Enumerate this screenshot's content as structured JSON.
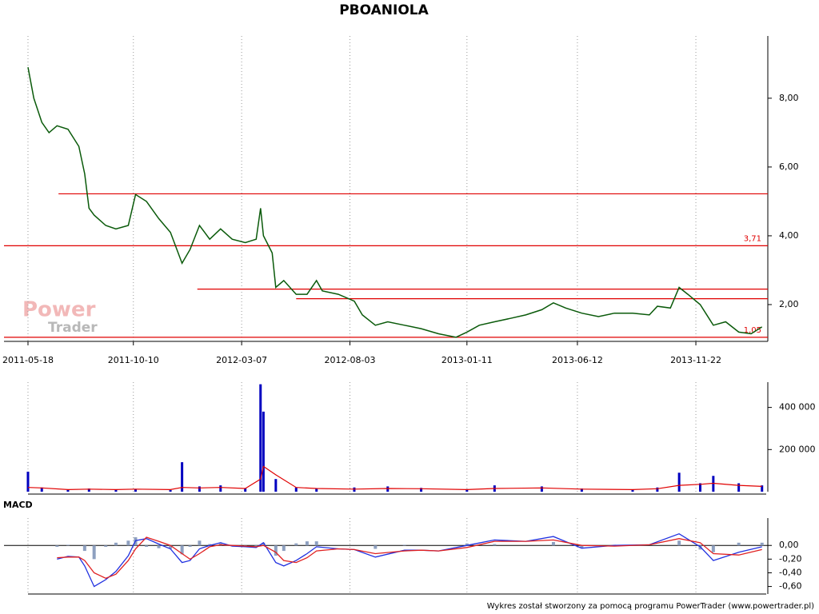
{
  "chart_data": [
    {
      "type": "line",
      "title": "PBOANIOLA",
      "color": "#0a5a0a",
      "xlim": [
        "2011-04-15",
        "2014-03-01"
      ],
      "ylim": [
        0.93,
        9.81
      ],
      "xticks": [
        "2011-05-18",
        "2011-10-10",
        "2012-03-07",
        "2012-08-03",
        "2013-01-11",
        "2013-06-12",
        "2013-11-22"
      ],
      "yticks": [
        {
          "value": 2,
          "label": "2,00"
        },
        {
          "value": 4,
          "label": "4,00"
        },
        {
          "value": 6,
          "label": "6,00"
        },
        {
          "value": 8,
          "label": "8,00"
        }
      ],
      "grid": true,
      "x": [
        "2011-05-18",
        "2011-05-26",
        "2011-06-06",
        "2011-06-16",
        "2011-06-27",
        "2011-07-12",
        "2011-07-27",
        "2011-08-04",
        "2011-08-10",
        "2011-08-17",
        "2011-09-02",
        "2011-09-16",
        "2011-10-03",
        "2011-10-13",
        "2011-10-28",
        "2011-11-14",
        "2011-11-30",
        "2011-12-16",
        "2011-12-27",
        "2012-01-09",
        "2012-01-23",
        "2012-02-07",
        "2012-02-23",
        "2012-03-12",
        "2012-03-27",
        "2012-04-02",
        "2012-04-06",
        "2012-04-18",
        "2012-04-23",
        "2012-05-04",
        "2012-05-21",
        "2012-06-05",
        "2012-06-18",
        "2012-06-26",
        "2012-07-18",
        "2012-08-09",
        "2012-08-20",
        "2012-09-07",
        "2012-09-24",
        "2012-10-17",
        "2012-11-09",
        "2012-12-03",
        "2012-12-27",
        "2013-01-11",
        "2013-01-28",
        "2013-02-18",
        "2013-03-12",
        "2013-04-02",
        "2013-04-24",
        "2013-05-10",
        "2013-05-27",
        "2013-06-18",
        "2013-07-11",
        "2013-08-02",
        "2013-08-27",
        "2013-09-19",
        "2013-09-30",
        "2013-10-18",
        "2013-10-30",
        "2013-11-11",
        "2013-11-28",
        "2013-12-16",
        "2014-01-02",
        "2014-01-20",
        "2014-02-06",
        "2014-02-21"
      ],
      "values": [
        8.9,
        8.0,
        7.3,
        7.0,
        7.2,
        7.1,
        6.6,
        5.8,
        4.8,
        4.6,
        4.3,
        4.2,
        4.3,
        5.2,
        5.0,
        4.5,
        4.1,
        3.2,
        3.6,
        4.3,
        3.9,
        4.2,
        3.9,
        3.8,
        3.9,
        4.8,
        4.0,
        3.5,
        2.5,
        2.7,
        2.3,
        2.3,
        2.7,
        2.4,
        2.3,
        2.1,
        1.7,
        1.4,
        1.5,
        1.4,
        1.3,
        1.15,
        1.05,
        1.2,
        1.4,
        1.5,
        1.6,
        1.7,
        1.85,
        2.05,
        1.9,
        1.75,
        1.65,
        1.75,
        1.75,
        1.7,
        1.95,
        1.9,
        2.5,
        2.3,
        2.0,
        1.4,
        1.5,
        1.2,
        1.15,
        1.35
      ],
      "reference_color": "#e00000",
      "reference_lines": [
        {
          "value": 5.22,
          "start": "2011-06-29"
        },
        {
          "value": 3.71,
          "label": "3,71"
        },
        {
          "value": 2.45,
          "start": "2012-01-06"
        },
        {
          "value": 2.17,
          "start": "2012-05-21"
        },
        {
          "value": 1.05,
          "label": "1,05"
        }
      ]
    },
    {
      "type": "bar",
      "color": "#0000c0",
      "average_color": "#e00000",
      "ylim": [
        0,
        520000
      ],
      "yticks": [
        {
          "value": 200000,
          "label": "200 000"
        },
        {
          "value": 400000,
          "label": "400 000"
        }
      ],
      "x": [
        "2011-05-18",
        "2011-06-06",
        "2011-07-12",
        "2011-08-10",
        "2011-09-16",
        "2011-10-13",
        "2011-11-30",
        "2011-12-16",
        "2012-01-09",
        "2012-02-07",
        "2012-03-12",
        "2012-04-02",
        "2012-04-06",
        "2012-04-23",
        "2012-05-21",
        "2012-06-18",
        "2012-08-09",
        "2012-09-24",
        "2012-11-09",
        "2013-01-11",
        "2013-02-18",
        "2013-04-24",
        "2013-06-18",
        "2013-08-27",
        "2013-09-30",
        "2013-10-30",
        "2013-11-28",
        "2013-12-16",
        "2014-01-20",
        "2014-02-21"
      ],
      "values": [
        95000,
        20000,
        8000,
        15000,
        10000,
        12000,
        8000,
        140000,
        25000,
        30000,
        15000,
        510000,
        380000,
        60000,
        20000,
        15000,
        20000,
        25000,
        18000,
        12000,
        30000,
        25000,
        15000,
        10000,
        20000,
        90000,
        40000,
        75000,
        40000,
        30000
      ],
      "average": [
        20000,
        18000,
        10000,
        12000,
        10000,
        12000,
        10000,
        20000,
        18000,
        20000,
        15000,
        60000,
        120000,
        80000,
        20000,
        15000,
        12000,
        15000,
        14000,
        10000,
        15000,
        18000,
        12000,
        10000,
        14000,
        30000,
        35000,
        40000,
        30000,
        25000
      ]
    },
    {
      "type": "line",
      "title": "MACD",
      "ylim": [
        -0.71,
        0.4
      ],
      "yticks": [
        {
          "value": 0,
          "label": "0,00"
        },
        {
          "value": -0.2,
          "label": "-0,20"
        },
        {
          "value": -0.4,
          "label": "-0,40"
        },
        {
          "value": -0.6,
          "label": "-0,60"
        }
      ],
      "x": [
        "2011-06-27",
        "2011-07-12",
        "2011-07-27",
        "2011-08-04",
        "2011-08-17",
        "2011-09-02",
        "2011-09-16",
        "2011-10-03",
        "2011-10-13",
        "2011-10-28",
        "2011-11-14",
        "2011-11-30",
        "2011-12-16",
        "2011-12-27",
        "2012-01-09",
        "2012-01-23",
        "2012-02-07",
        "2012-02-23",
        "2012-03-12",
        "2012-03-27",
        "2012-04-06",
        "2012-04-23",
        "2012-05-04",
        "2012-05-21",
        "2012-06-05",
        "2012-06-18",
        "2012-07-18",
        "2012-08-09",
        "2012-09-07",
        "2012-10-17",
        "2012-11-09",
        "2012-12-03",
        "2013-01-11",
        "2013-02-18",
        "2013-04-02",
        "2013-05-10",
        "2013-06-18",
        "2013-08-02",
        "2013-09-19",
        "2013-10-30",
        "2013-11-28",
        "2013-12-16",
        "2014-01-20",
        "2014-02-21"
      ],
      "series": [
        {
          "color": "#2030e0",
          "values": [
            -0.2,
            -0.16,
            -0.17,
            -0.3,
            -0.6,
            -0.5,
            -0.38,
            -0.15,
            0.07,
            0.1,
            0.02,
            -0.05,
            -0.25,
            -0.22,
            -0.05,
            0,
            0.04,
            -0.01,
            -0.02,
            -0.03,
            0.04,
            -0.25,
            -0.3,
            -0.22,
            -0.12,
            -0.02,
            -0.05,
            -0.06,
            -0.17,
            -0.07,
            -0.07,
            -0.08,
            0,
            0.08,
            0.06,
            0.13,
            -0.04,
            0,
            0.01,
            0.17,
            -0.02,
            -0.22,
            -0.1,
            -0.02
          ]
        },
        {
          "color": "#e02020",
          "values": [
            -0.18,
            -0.17,
            -0.17,
            -0.22,
            -0.4,
            -0.48,
            -0.42,
            -0.22,
            -0.05,
            0.12,
            0.06,
            0,
            -0.12,
            -0.2,
            -0.12,
            -0.02,
            0.01,
            0,
            -0.01,
            -0.02,
            0,
            -0.1,
            -0.22,
            -0.25,
            -0.18,
            -0.08,
            -0.05,
            -0.06,
            -0.12,
            -0.08,
            -0.07,
            -0.08,
            -0.03,
            0.06,
            0.06,
            0.08,
            0,
            -0.01,
            0.01,
            0.1,
            0.04,
            -0.12,
            -0.14,
            -0.06
          ]
        }
      ],
      "histogram": {
        "color": "#8ea0c0",
        "values": [
          -0.02,
          0.01,
          0,
          -0.08,
          -0.2,
          -0.02,
          0.04,
          0.07,
          0.12,
          -0.02,
          -0.04,
          -0.05,
          -0.13,
          -0.02,
          0.07,
          0.02,
          0.03,
          -0.01,
          -0.01,
          -0.01,
          0.04,
          -0.15,
          -0.08,
          0.03,
          0.06,
          0.06,
          0,
          0,
          -0.05,
          0.01,
          0,
          0,
          0.03,
          0.02,
          0,
          0.05,
          -0.04,
          0.01,
          0,
          0.07,
          -0.06,
          -0.1,
          0.04,
          0.04
        ]
      }
    }
  ],
  "watermark": {
    "top": "Power",
    "bottom": "Trader"
  },
  "footer": "Wykres został stworzony za pomocą programu PowerTrader (www.powertrader.pl)"
}
